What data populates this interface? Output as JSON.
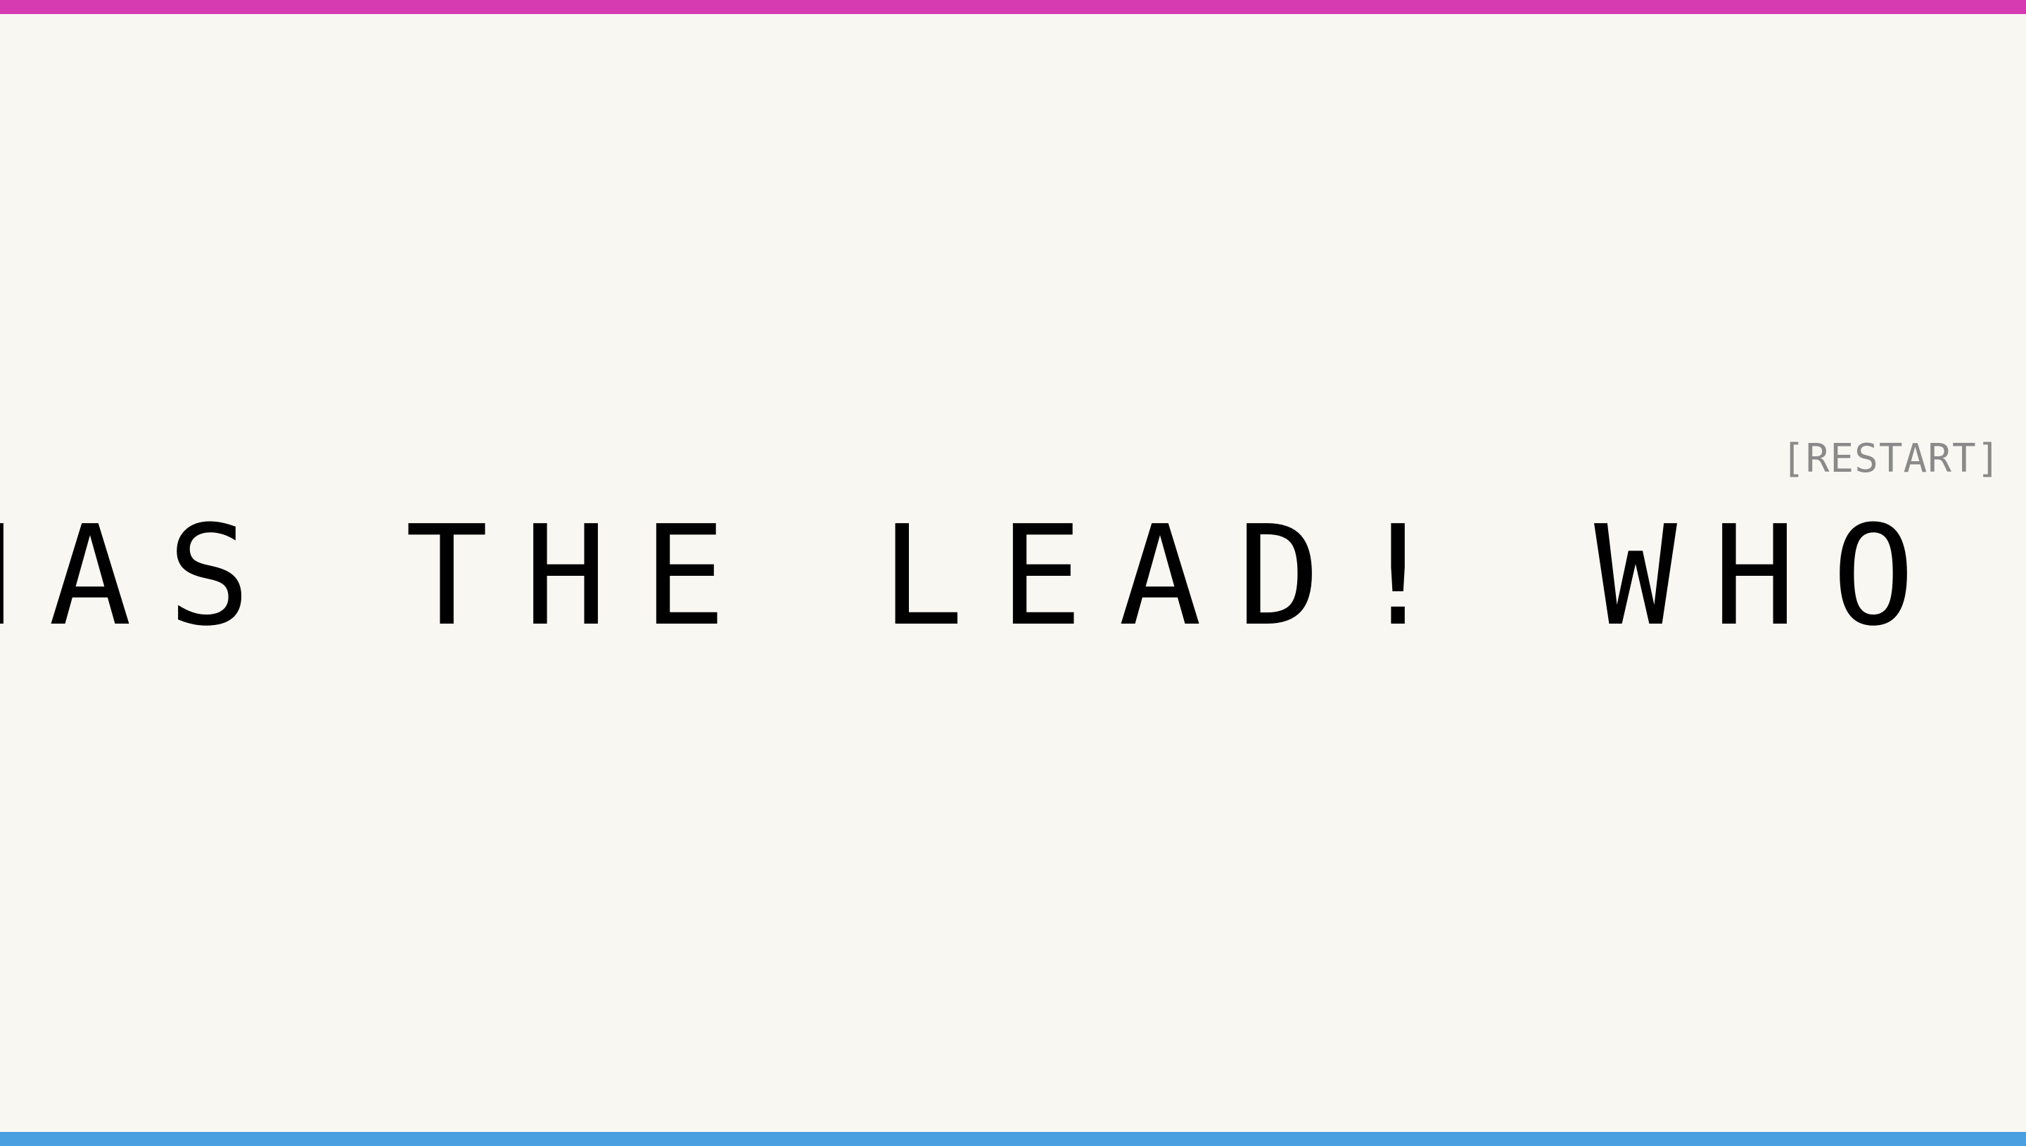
{
  "colors": {
    "background": "#f9f7f2",
    "top_bar": "#d63bb2",
    "bottom_bar": "#4a9fe1",
    "ticker_text": "#000000",
    "restart_text": "#8a8a8a"
  },
  "restart": {
    "label": "[RESTART]"
  },
  "ticker": {
    "text": "HAS THE LEAD! WHO WILL"
  }
}
